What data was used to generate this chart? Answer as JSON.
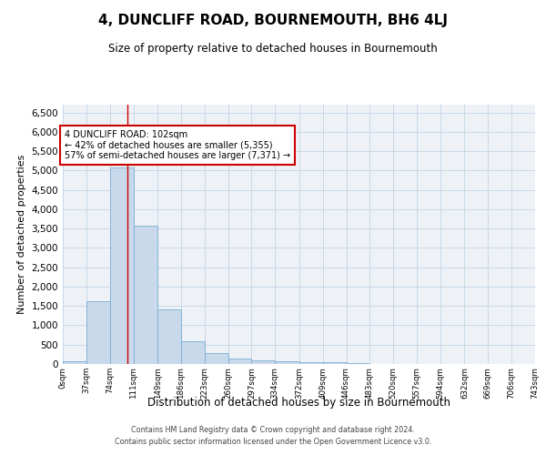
{
  "title": "4, DUNCLIFF ROAD, BOURNEMOUTH, BH6 4LJ",
  "subtitle": "Size of property relative to detached houses in Bournemouth",
  "xlabel": "Distribution of detached houses by size in Bournemouth",
  "ylabel": "Number of detached properties",
  "footer_line1": "Contains HM Land Registry data © Crown copyright and database right 2024.",
  "footer_line2": "Contains public sector information licensed under the Open Government Licence v3.0.",
  "bar_color": "#c9d9ec",
  "bar_edge_color": "#7aafd4",
  "grid_color": "#c8d8e8",
  "annotation_box_color": "#cc0000",
  "annotation_line_color": "#cc0000",
  "annotation_text": "4 DUNCLIFF ROAD: 102sqm\n← 42% of detached houses are smaller (5,355)\n57% of semi-detached houses are larger (7,371) →",
  "property_size_sqm": 102,
  "bin_edges": [
    0,
    37,
    74,
    111,
    149,
    186,
    223,
    260,
    297,
    334,
    372,
    409,
    446,
    483,
    520,
    557,
    594,
    632,
    669,
    706,
    743
  ],
  "bin_labels": [
    "0sqm",
    "37sqm",
    "74sqm",
    "111sqm",
    "149sqm",
    "186sqm",
    "223sqm",
    "260sqm",
    "297sqm",
    "334sqm",
    "372sqm",
    "409sqm",
    "446sqm",
    "483sqm",
    "520sqm",
    "557sqm",
    "594sqm",
    "632sqm",
    "669sqm",
    "706sqm",
    "743sqm"
  ],
  "bar_heights": [
    75,
    1625,
    5075,
    3575,
    1400,
    580,
    290,
    135,
    100,
    80,
    50,
    50,
    30,
    10,
    10,
    5,
    5,
    3,
    2,
    1
  ],
  "ylim": [
    0,
    6700
  ],
  "yticks": [
    0,
    500,
    1000,
    1500,
    2000,
    2500,
    3000,
    3500,
    4000,
    4500,
    5000,
    5500,
    6000,
    6500
  ],
  "background_color": "#eef2f7",
  "title_fontsize": 11,
  "subtitle_fontsize": 8.5,
  "ylabel_fontsize": 8,
  "xlabel_fontsize": 8.5,
  "ytick_fontsize": 7.5,
  "xtick_fontsize": 6.2,
  "footer_fontsize": 5.8
}
